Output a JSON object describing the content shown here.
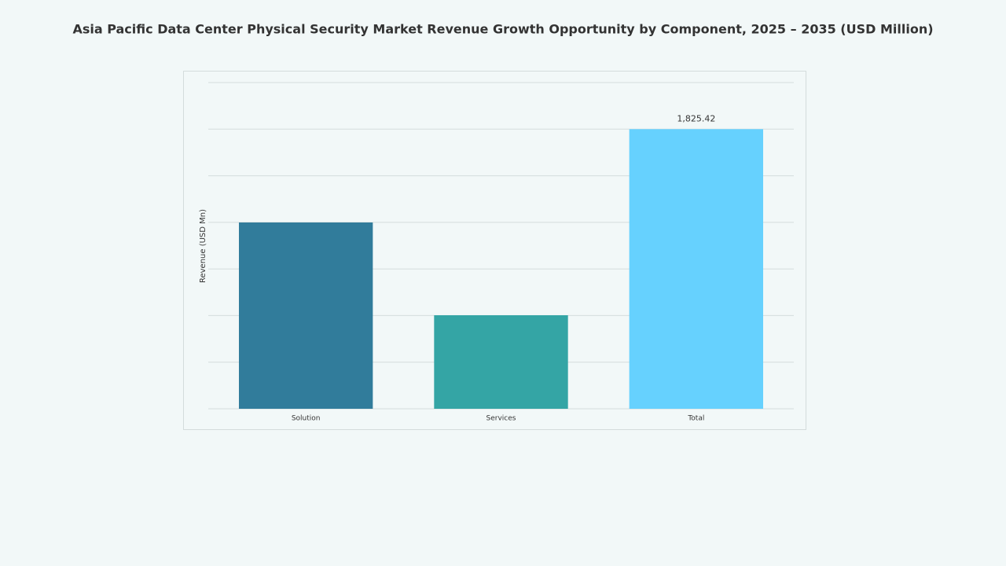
{
  "chart_data": {
    "type": "bar",
    "title": "Asia Pacific Data Center Physical Security Market Revenue Growth Opportunity by Component, 2025 – 2035 (USD Million)",
    "y_label": "Revenue (USD Mn)",
    "categories": [
      "Solution",
      "Services",
      "Total"
    ],
    "values": [
      1216.2,
      610.7,
      1825.42
    ],
    "value_labels": [
      null,
      null,
      "1,825.42"
    ],
    "colors": [
      "#317c9b",
      "#34a5a5",
      "#66d1fe"
    ],
    "ylim": [
      0,
      2129.68
    ],
    "yticks": [
      0,
      304.24,
      608.48,
      912.72,
      1216.96,
      1521.2,
      1825.44,
      2129.68
    ],
    "show_ytick_labels": false,
    "grid": true
  }
}
